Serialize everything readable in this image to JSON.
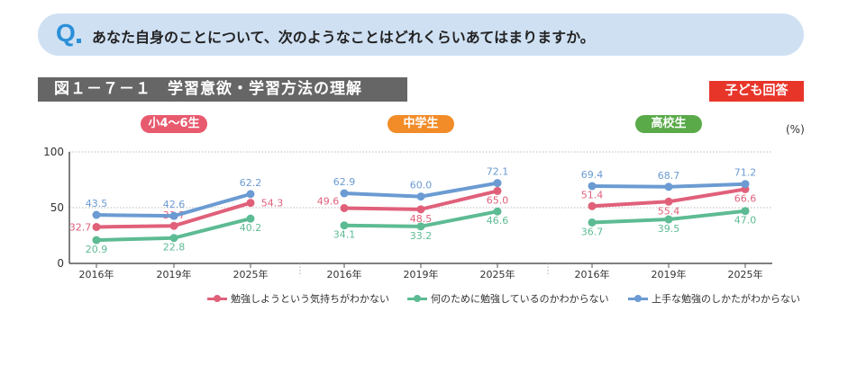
{
  "question": {
    "icon": "Q",
    "text": "あなた自身のことについて、次のようなことはどれくらいあてはまりますか。"
  },
  "figure_title": "図１－７－１　学習意欲・学習方法の理解",
  "badge": "子ども回答",
  "unit": "(%)",
  "colors": {
    "pink": "#e0607a",
    "green": "#5dbb93",
    "blue": "#6b9bd2",
    "elem": "#e85a6e",
    "middle": "#f28c28",
    "high": "#5aaa4a"
  },
  "chart_data": {
    "type": "line",
    "ylim": [
      0,
      100
    ],
    "yticks": [
      0,
      50,
      100
    ],
    "grid": true,
    "legend_position": "bottom",
    "panels": [
      {
        "label": "小4～6生",
        "categories": [
          "2016年",
          "2019年",
          "2025年"
        ],
        "series": [
          {
            "name": "勉強しようという気持ちがわかない",
            "values": [
              32.7,
              33.7,
              54.3
            ]
          },
          {
            "name": "何のために勉強しているのかわからない",
            "values": [
              20.9,
              22.8,
              40.2
            ]
          },
          {
            "name": "上手な勉強のしかたがわからない",
            "values": [
              43.5,
              42.6,
              62.2
            ]
          }
        ]
      },
      {
        "label": "中学生",
        "categories": [
          "2016年",
          "2019年",
          "2025年"
        ],
        "series": [
          {
            "name": "勉強しようという気持ちがわかない",
            "values": [
              49.6,
              48.5,
              65.0
            ]
          },
          {
            "name": "何のために勉強しているのかわからない",
            "values": [
              34.1,
              33.2,
              46.6
            ]
          },
          {
            "name": "上手な勉強のしかたがわからない",
            "values": [
              62.9,
              60.0,
              72.1
            ]
          }
        ]
      },
      {
        "label": "高校生",
        "categories": [
          "2016年",
          "2019年",
          "2025年"
        ],
        "series": [
          {
            "name": "勉強しようという気持ちがわかない",
            "values": [
              51.4,
              55.4,
              66.6
            ]
          },
          {
            "name": "何のために勉強しているのかわからない",
            "values": [
              36.7,
              39.5,
              47.0
            ]
          },
          {
            "name": "上手な勉強のしかたがわからない",
            "values": [
              69.4,
              68.7,
              71.2
            ]
          }
        ]
      }
    ],
    "legend": [
      "勉強しようという気持ちがわかない",
      "何のために勉強しているのかわからない",
      "上手な勉強のしかたがわからない"
    ]
  }
}
